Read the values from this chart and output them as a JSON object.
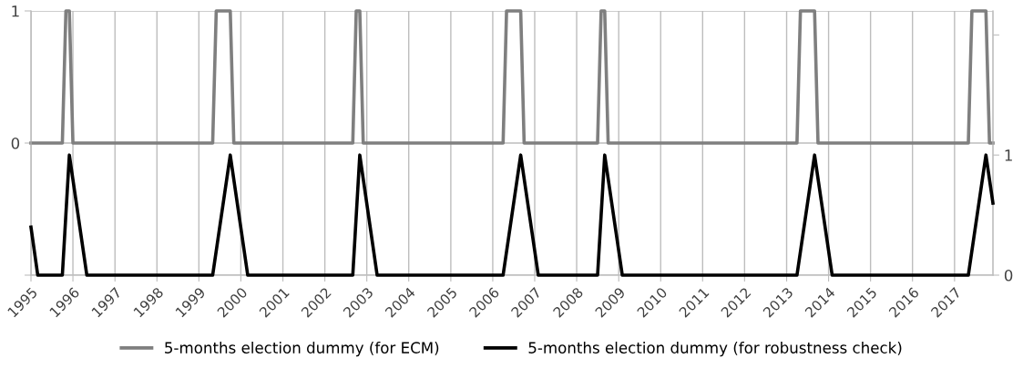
{
  "chart_data": {
    "type": "line",
    "series": [
      {
        "name": "5-months election dummy (for ECM)",
        "color": "#7f7f7f",
        "axis": "y",
        "x": [
          "1995-01",
          "1995-10",
          "1995-11",
          "1995-12",
          "1996-01",
          "1999-05",
          "1999-06",
          "1999-10",
          "1999-11",
          "2002-09",
          "2002-10",
          "2002-11",
          "2002-12",
          "2006-04",
          "2006-05",
          "2006-09",
          "2006-10",
          "2008-07",
          "2008-08",
          "2008-09",
          "2008-10",
          "2013-04",
          "2013-05",
          "2013-09",
          "2013-10",
          "2017-05",
          "2017-06",
          "2017-10",
          "2017-11",
          "2017-12"
        ],
        "values": [
          0,
          0,
          1,
          1,
          0,
          0,
          1,
          1,
          0,
          0,
          1,
          1,
          0,
          0,
          1,
          1,
          0,
          0,
          1,
          1,
          0,
          0,
          1,
          1,
          0,
          0,
          1,
          1,
          0,
          0
        ]
      },
      {
        "name": "5-months election dummy (for robustness check)",
        "color": "#000000",
        "axis": "y2",
        "x": [
          "1995-01",
          "1995-03",
          "1995-10",
          "1995-12",
          "1996-05",
          "1999-05",
          "1999-10",
          "2000-03",
          "2002-09",
          "2002-11",
          "2003-04",
          "2006-04",
          "2006-09",
          "2007-02",
          "2008-07",
          "2008-09",
          "2009-02",
          "2013-04",
          "2013-09",
          "2014-02",
          "2017-05",
          "2017-10",
          "2017-12"
        ],
        "values": [
          0.4,
          0,
          0,
          1,
          0,
          0,
          1,
          0,
          0,
          1,
          0,
          0,
          1,
          0,
          0,
          1,
          0,
          0,
          1,
          0,
          0,
          1,
          0.6
        ]
      }
    ],
    "xlim": [
      "1995-01",
      "2017-12"
    ],
    "xticks": [
      {
        "value": "1995-01",
        "label": "1995"
      },
      {
        "value": "1996-01",
        "label": "1996"
      },
      {
        "value": "1997-01",
        "label": "1997"
      },
      {
        "value": "1998-01",
        "label": "1998"
      },
      {
        "value": "1999-01",
        "label": "1999"
      },
      {
        "value": "2000-01",
        "label": "2000"
      },
      {
        "value": "2001-01",
        "label": "2001"
      },
      {
        "value": "2002-01",
        "label": "2002"
      },
      {
        "value": "2003-01",
        "label": "2003"
      },
      {
        "value": "2004-01",
        "label": "2004"
      },
      {
        "value": "2005-01",
        "label": "2005"
      },
      {
        "value": "2006-01",
        "label": "2006"
      },
      {
        "value": "2007-01",
        "label": "2007"
      },
      {
        "value": "2008-01",
        "label": "2008"
      },
      {
        "value": "2009-01",
        "label": "2009"
      },
      {
        "value": "2010-01",
        "label": "2010"
      },
      {
        "value": "2011-01",
        "label": "2011"
      },
      {
        "value": "2012-01",
        "label": "2012"
      },
      {
        "value": "2013-01",
        "label": "2013"
      },
      {
        "value": "2014-01",
        "label": "2014"
      },
      {
        "value": "2015-01",
        "label": "2015"
      },
      {
        "value": "2016-01",
        "label": "2016"
      },
      {
        "value": "2017-01",
        "label": "2017"
      }
    ],
    "ylim": [
      -1,
      1
    ],
    "yticks": [
      {
        "value": -1,
        "label": null
      },
      0,
      1
    ],
    "y2lim": [
      0,
      2.2
    ],
    "y2ticks": [
      0,
      1,
      {
        "value": 2,
        "label": null
      }
    ],
    "grid": true,
    "legend": "bottom",
    "marker": "none",
    "line_style": "solid"
  }
}
